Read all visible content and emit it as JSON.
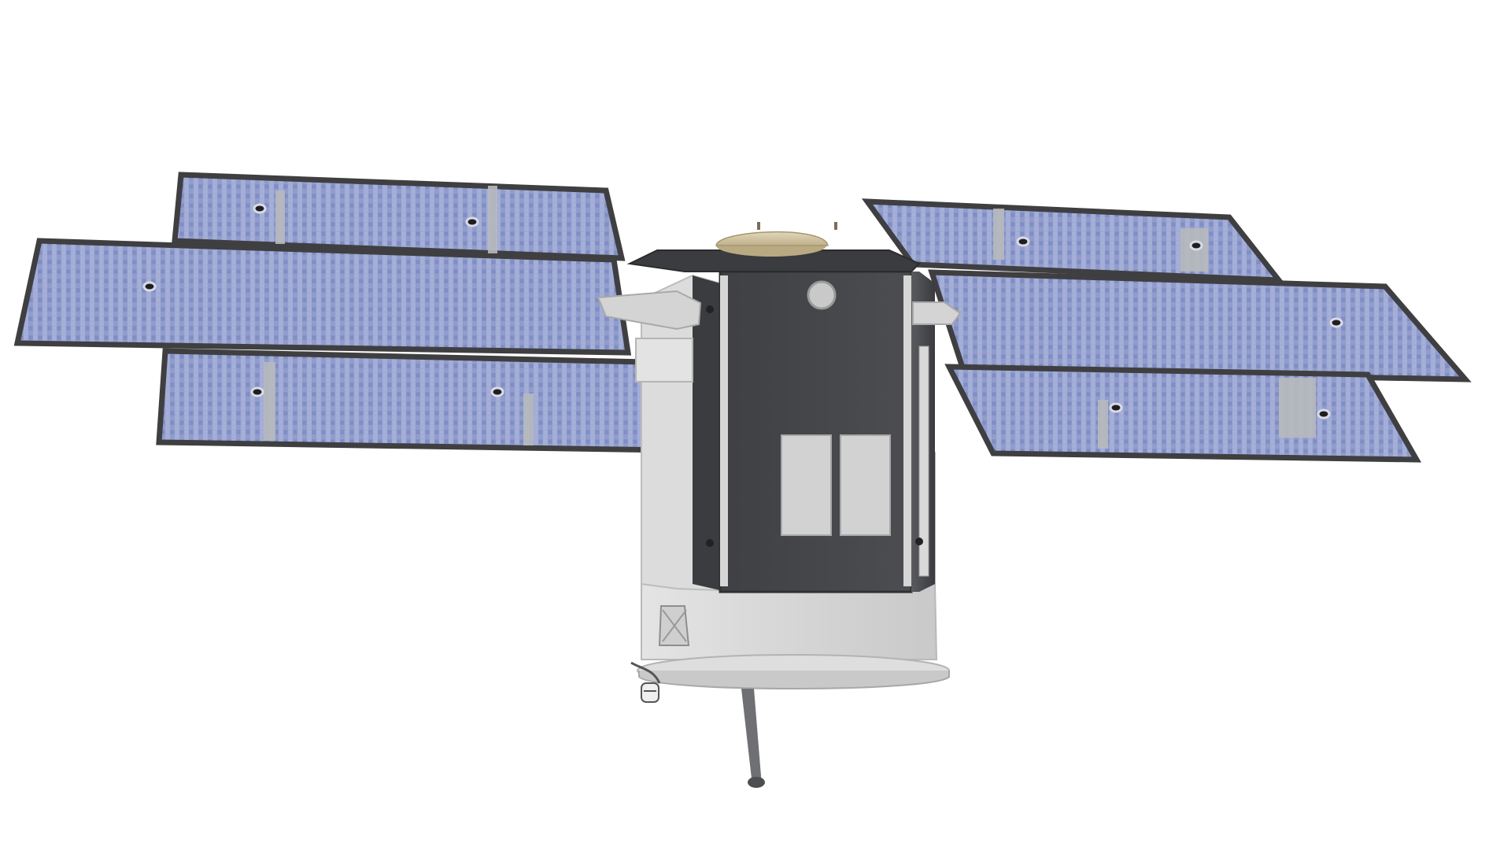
{
  "scene": {
    "subject": "satellite",
    "background_color": "#ffffff",
    "colors": {
      "panel_cell_a": "#8f9ccc",
      "panel_cell_b": "#a5afd8",
      "panel_cell_c": "#7f8ec4",
      "panel_frame": "#3f3f42",
      "panel_strip": "#b7b9bd",
      "bus_body": "#4b4c4f",
      "bus_top": "#3a3b3e",
      "bus_lower": "#dcdcdc",
      "radiator": "#d2d2d2",
      "dome": "#cdbf9c",
      "base_plate": "#d9d9d9"
    },
    "parts": {
      "solar_panels": 6,
      "panels_per_wing": 3,
      "radiator_plates": 2
    }
  }
}
